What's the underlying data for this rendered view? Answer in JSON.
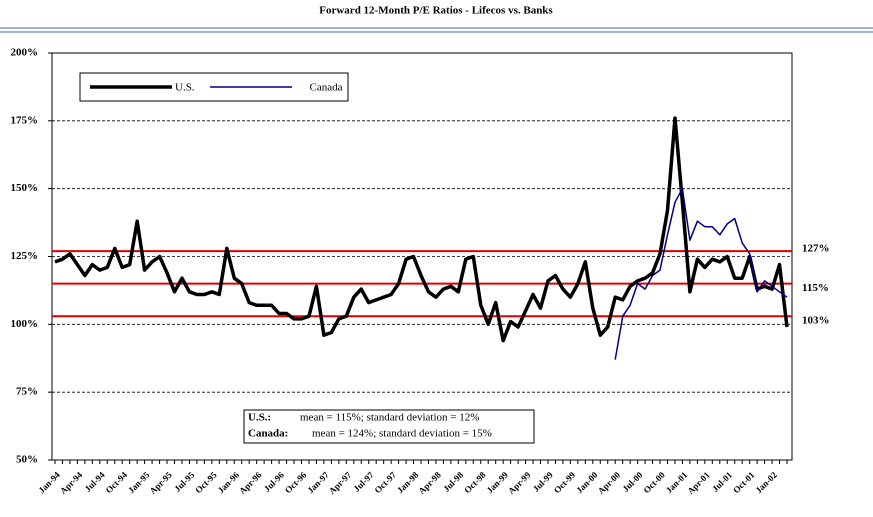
{
  "chart_data": {
    "type": "line",
    "title": "Forward 12-Month P/E Ratios - Lifecos vs. Banks",
    "categories": [
      "Jan-94",
      null,
      null,
      "Apr-94",
      null,
      null,
      "Jul-94",
      null,
      null,
      "Oct-94",
      null,
      null,
      "Jan-95",
      null,
      null,
      "Apr-95",
      null,
      null,
      "Jul-95",
      null,
      null,
      "Oct-95",
      null,
      null,
      "Jan-96",
      null,
      null,
      "Apr-96",
      null,
      null,
      "Jul-96",
      null,
      null,
      "Oct-96",
      null,
      null,
      "Jan-97",
      null,
      null,
      "Apr-97",
      null,
      null,
      "Jul-97",
      null,
      null,
      "Oct-97",
      null,
      null,
      "Jan-98",
      null,
      null,
      "Apr-98",
      null,
      null,
      "Jul-98",
      null,
      null,
      "Oct-98",
      null,
      null,
      "Jan-99",
      null,
      null,
      "Apr-99",
      null,
      null,
      "Jul-99",
      null,
      null,
      "Oct-99",
      null,
      null,
      "Jan-00",
      null,
      null,
      "Apr-00",
      null,
      null,
      "Jul-00",
      null,
      null,
      "Oct-00",
      null,
      null,
      "Jan-01",
      null,
      null,
      "Apr-01",
      null,
      null,
      "Jul-01",
      null,
      null,
      "Oct-01",
      null,
      null,
      "Jan-02",
      null,
      null
    ],
    "series": [
      {
        "name": "U.S.",
        "color": "#000000",
        "width": 3.5,
        "values": [
          123,
          124,
          126,
          122,
          118,
          122,
          120,
          121,
          128,
          121,
          122,
          138,
          120,
          123,
          125,
          119,
          112,
          117,
          112,
          111,
          111,
          112,
          111,
          128,
          117,
          115,
          108,
          107,
          107,
          107,
          104,
          104,
          102,
          102,
          103,
          114,
          96,
          97,
          102,
          103,
          110,
          113,
          108,
          109,
          110,
          111,
          115,
          124,
          125,
          118,
          112,
          110,
          113,
          114,
          112,
          124,
          125,
          107,
          100,
          108,
          94,
          101,
          99,
          105,
          111,
          106,
          116,
          118,
          113,
          110,
          115,
          123,
          106,
          96,
          99,
          110,
          109,
          114,
          116,
          117,
          119,
          126,
          142,
          176,
          145,
          112,
          124,
          121,
          124,
          123,
          125,
          117,
          117,
          125,
          113,
          114,
          113,
          122,
          99
        ]
      },
      {
        "name": "Canada",
        "color": "#000080",
        "width": 1.5,
        "values": [
          null,
          null,
          null,
          null,
          null,
          null,
          null,
          null,
          null,
          null,
          null,
          null,
          null,
          null,
          null,
          null,
          null,
          null,
          null,
          null,
          null,
          null,
          null,
          null,
          null,
          null,
          null,
          null,
          null,
          null,
          null,
          null,
          null,
          null,
          null,
          null,
          null,
          null,
          null,
          null,
          null,
          null,
          null,
          null,
          null,
          null,
          null,
          null,
          null,
          null,
          null,
          null,
          null,
          null,
          null,
          null,
          null,
          null,
          null,
          null,
          null,
          null,
          null,
          null,
          null,
          null,
          null,
          null,
          null,
          null,
          null,
          null,
          null,
          null,
          null,
          87,
          103,
          107,
          115,
          113,
          118,
          120,
          133,
          145,
          150,
          131,
          138,
          136,
          136,
          133,
          137,
          139,
          130,
          126,
          112,
          116,
          114,
          112,
          110
        ]
      }
    ],
    "ylim": [
      50,
      200
    ],
    "yticks": [
      {
        "value": 50,
        "label": "50%"
      },
      {
        "value": 75,
        "label": "75%"
      },
      {
        "value": 100,
        "label": "100%"
      },
      {
        "value": 125,
        "label": "125%"
      },
      {
        "value": 150,
        "label": "150%"
      },
      {
        "value": 175,
        "label": "175%"
      },
      {
        "value": 200,
        "label": "200%"
      }
    ],
    "grid": true,
    "ref_lines": {
      "color": "#e00000",
      "lines": [
        {
          "value": 127,
          "label": "127%"
        },
        {
          "value": 115,
          "label": "115%"
        },
        {
          "value": 103,
          "label": "103%"
        }
      ]
    },
    "notes": [
      [
        "U.S.:",
        "mean = 115%; standard deviation = 12%"
      ],
      [
        "Canada:",
        "mean = 124%; standard deviation = 15%"
      ]
    ]
  }
}
